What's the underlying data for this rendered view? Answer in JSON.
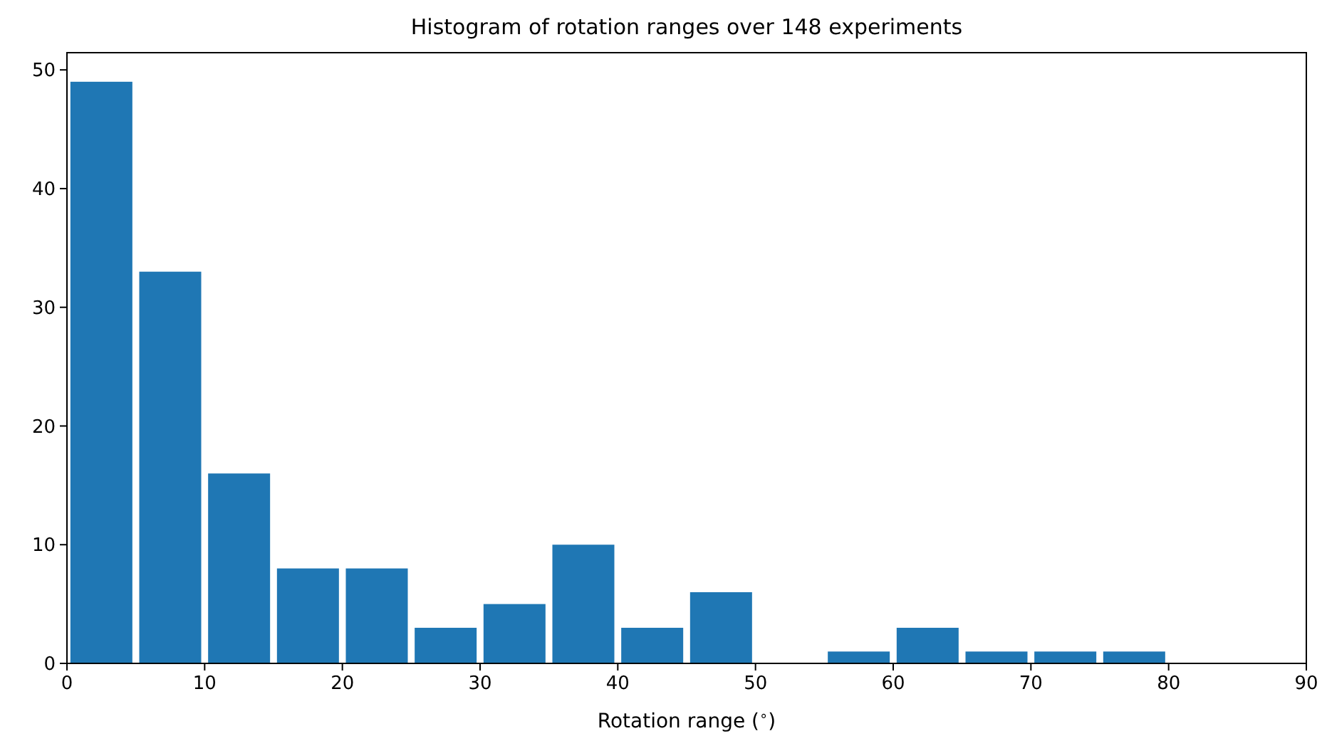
{
  "chart_data": {
    "type": "histogram",
    "title": "Histogram of rotation ranges over 148 experiments",
    "xlabel": "Rotation range ($^{∘}$)",
    "bins": [
      0,
      5,
      10,
      15,
      20,
      25,
      30,
      35,
      40,
      45,
      50,
      55,
      60,
      65,
      70,
      75,
      80
    ],
    "values": [
      49,
      33,
      16,
      8,
      8,
      3,
      5,
      10,
      3,
      6,
      0,
      1,
      3,
      1,
      1,
      1
    ],
    "color": "#1f77b4",
    "xlim": [
      0,
      90
    ],
    "xticks": [
      0,
      10,
      20,
      30,
      40,
      50,
      60,
      70,
      80,
      90
    ],
    "ylim": [
      0,
      51.45
    ],
    "yticks": [
      0,
      10,
      20,
      30,
      40,
      50
    ],
    "grid": false
  }
}
